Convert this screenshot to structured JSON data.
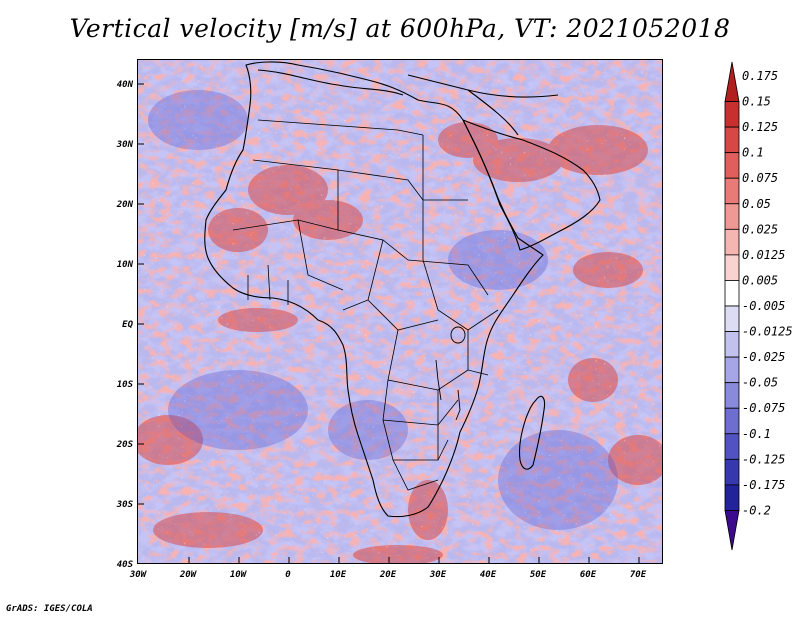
{
  "title": "Vertical velocity [m/s] at 600hPa, VT: 2021052018",
  "credit": "GrADS: IGES/COLA",
  "map": {
    "lat_labels": [
      "40N",
      "30N",
      "20N",
      "10N",
      "EQ",
      "10S",
      "20S",
      "30S",
      "40S"
    ],
    "lon_labels": [
      "30W",
      "20W",
      "10W",
      "0",
      "10E",
      "20E",
      "30E",
      "40E",
      "50E",
      "60E",
      "70E"
    ]
  },
  "colorbar": {
    "labels": [
      "0.175",
      "0.15",
      "0.125",
      "0.1",
      "0.075",
      "0.05",
      "0.025",
      "0.0125",
      "0.005",
      "-0.005",
      "-0.0125",
      "-0.025",
      "-0.05",
      "-0.075",
      "-0.1",
      "-0.125",
      "-0.175",
      "-0.2"
    ],
    "colors": [
      "#b21f1f",
      "#c8302f",
      "#d64746",
      "#e05e5c",
      "#e87a77",
      "#f09894",
      "#f5b6b2",
      "#f9d3d0",
      "#ffffff",
      "#dcdcf5",
      "#c2c2ee",
      "#a6a6e6",
      "#8a8adc",
      "#6e6ed0",
      "#5252c2",
      "#3838ae",
      "#22229a",
      "#3c0a8c"
    ]
  }
}
